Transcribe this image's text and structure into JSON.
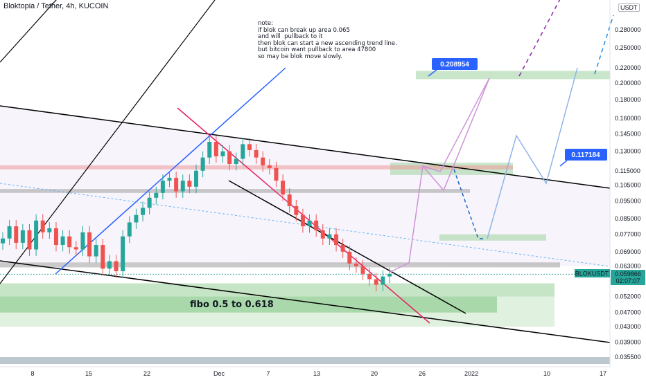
{
  "header": {
    "title": "Bloktopia / Tether, 4h, KUCOIN",
    "currency": "USDT"
  },
  "note": "note:\nif blok can break up area 0.065\nand will  pullback to it\nthen blok can start a new ascending trend line.\nbut bitcoin want pullback to area 47800\nso may be blok move slowly.",
  "annotations": {
    "fibo_zone": "fibo 0.5 to 0.618",
    "callout_upper": "0.208954",
    "callout_mid": "0.117184"
  },
  "price_label": {
    "symbol": "BLOKUSDT",
    "price": "0.059866",
    "countdown": "02:07:07"
  },
  "colors": {
    "up": "#26a69a",
    "down": "#ef5350",
    "zone_green": "#a5d6a7",
    "zone_red": "#ef9a9a",
    "zone_gray": "#9e9e9e",
    "callout": "#2962ff",
    "path_purple": "#ce93d8",
    "path_blue": "#90b4e8",
    "trend_blue": "#2962ff",
    "trend_red": "#e91e63"
  },
  "chart_data": {
    "type": "candlestick",
    "scale": "log",
    "ylim": [
      0.033,
      0.33
    ],
    "yticks": [
      "0.280000",
      "0.250000",
      "0.220000",
      "0.200000",
      "0.180000",
      "0.160000",
      "0.145000",
      "0.130000",
      "0.115000",
      "0.105000",
      "0.095000",
      "0.085000",
      "0.077000",
      "0.069000",
      "0.063000",
      "0.052000",
      "0.047000",
      "0.043000",
      "0.039000",
      "0.035500"
    ],
    "xticks": [
      "8",
      "15",
      "22",
      "Dec",
      "7",
      "13",
      "20",
      "26",
      "2022",
      "10",
      "17"
    ],
    "series_close_approx": [
      0.075,
      0.081,
      0.073,
      0.079,
      0.07,
      0.084,
      0.078,
      0.08,
      0.072,
      0.076,
      0.071,
      0.07,
      0.078,
      0.067,
      0.072,
      0.062,
      0.065,
      0.061,
      0.076,
      0.083,
      0.087,
      0.091,
      0.097,
      0.1,
      0.108,
      0.11,
      0.101,
      0.108,
      0.104,
      0.115,
      0.125,
      0.138,
      0.126,
      0.13,
      0.12,
      0.124,
      0.136,
      0.131,
      0.125,
      0.119,
      0.117,
      0.108,
      0.099,
      0.092,
      0.087,
      0.081,
      0.084,
      0.079,
      0.075,
      0.077,
      0.072,
      0.069,
      0.064,
      0.063,
      0.06,
      0.058,
      0.056,
      0.059,
      0.06
    ],
    "last_price": 0.059866,
    "zones": [
      {
        "kind": "support",
        "from": 0.052,
        "to": 0.0565
      },
      {
        "kind": "fibo",
        "from": 0.047,
        "to": 0.052
      },
      {
        "kind": "target",
        "from": 0.205,
        "to": 0.216
      },
      {
        "kind": "target",
        "from": 0.112,
        "to": 0.121
      },
      {
        "kind": "retest",
        "from": 0.074,
        "to": 0.077
      },
      {
        "kind": "resistance",
        "from": 0.116,
        "to": 0.119
      },
      {
        "kind": "resistance",
        "from": 0.1,
        "to": 0.1025
      },
      {
        "kind": "resistance",
        "from": 0.0625,
        "to": 0.0645
      }
    ]
  }
}
